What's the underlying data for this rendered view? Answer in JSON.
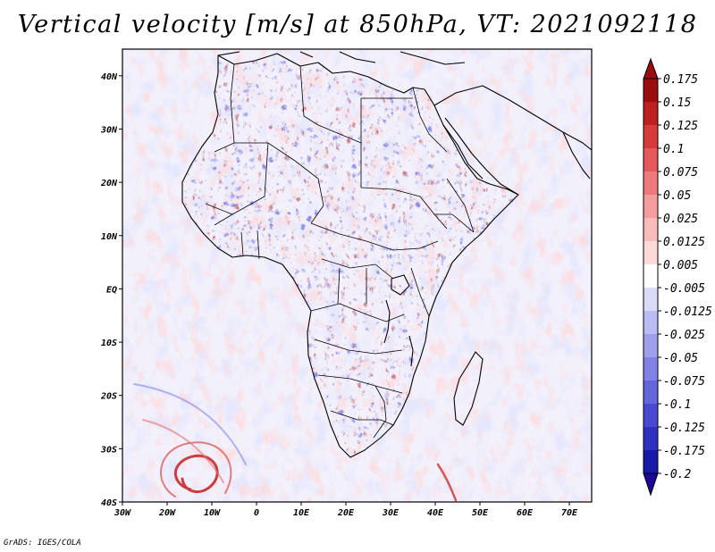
{
  "title": "Vertical velocity [m/s] at 850hPa, VT: 2021092118",
  "footer": "GrADS: IGES/COLA",
  "map": {
    "extent": {
      "lon": [
        -30,
        75
      ],
      "lat": [
        -40,
        45
      ]
    },
    "lon_ticks": [
      {
        "lon": -30,
        "label": "30W"
      },
      {
        "lon": -20,
        "label": "20W"
      },
      {
        "lon": -10,
        "label": "10W"
      },
      {
        "lon": 0,
        "label": "0"
      },
      {
        "lon": 10,
        "label": "10E"
      },
      {
        "lon": 20,
        "label": "20E"
      },
      {
        "lon": 30,
        "label": "30E"
      },
      {
        "lon": 40,
        "label": "40E"
      },
      {
        "lon": 50,
        "label": "50E"
      },
      {
        "lon": 60,
        "label": "60E"
      },
      {
        "lon": 70,
        "label": "70E"
      }
    ],
    "lat_ticks": [
      {
        "lat": 40,
        "label": "40N"
      },
      {
        "lat": 30,
        "label": "30N"
      },
      {
        "lat": 20,
        "label": "20N"
      },
      {
        "lat": 10,
        "label": "10N"
      },
      {
        "lat": 0,
        "label": "EQ"
      },
      {
        "lat": -10,
        "label": "10S"
      },
      {
        "lat": -20,
        "label": "20S"
      },
      {
        "lat": -30,
        "label": "30S"
      },
      {
        "lat": -40,
        "label": "40S"
      }
    ]
  },
  "colorbar": {
    "labels": [
      "0.175",
      "0.15",
      "0.125",
      "0.1",
      "0.075",
      "0.05",
      "0.025",
      "0.0125",
      "0.005",
      "-0.005",
      "-0.0125",
      "-0.025",
      "-0.05",
      "-0.075",
      "-0.1",
      "-0.125",
      "-0.175",
      "-0.2"
    ],
    "colors": [
      "#9c0d0d",
      "#c01f1f",
      "#d73a3a",
      "#e45a5a",
      "#ee7b7b",
      "#f59c9c",
      "#f9bcbc",
      "#fcdada",
      "#ffffff",
      "#dadaf9",
      "#bcbcf4",
      "#9f9fee",
      "#8282e6",
      "#6565dc",
      "#4848d0",
      "#2f2fc0",
      "#1a1aa8",
      "#10108a"
    ],
    "top_color": "#9c0d0d",
    "bottom_color": "#1a0a96"
  },
  "colors": {
    "red": "#d33a3a",
    "blue": "#4a4ad8",
    "land_outline": "#000000"
  }
}
